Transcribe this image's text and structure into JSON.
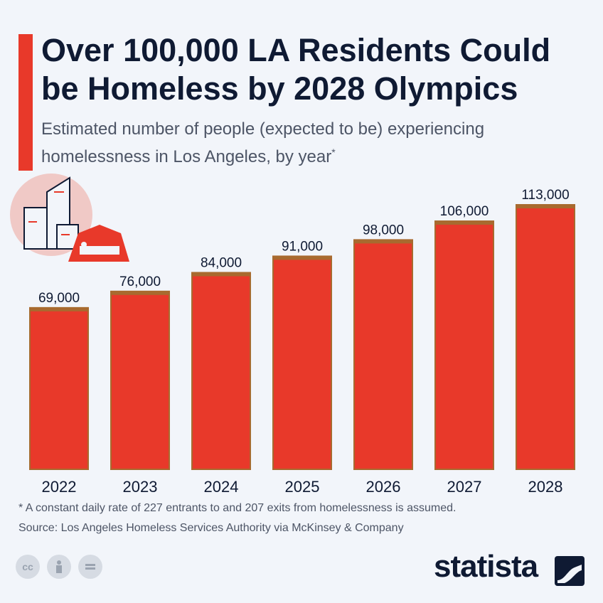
{
  "header": {
    "title": "Over 100,000 LA Residents Could be Homeless by 2028 Olympics",
    "subtitle": "Estimated number of people (expected to be) experiencing homelessness in Los Angeles, by year",
    "subtitle_marker": "*"
  },
  "footer": {
    "footnote": "* A constant daily rate of 227 entrants to and 207 exits from homelessness is assumed.",
    "source": "Source: Los Angeles Homeless Services Authority via McKinsey & Company",
    "brand": "statista",
    "license_icons": [
      "cc-icon",
      "attribution-icon",
      "no-derivatives-icon"
    ]
  },
  "colors": {
    "bar": "#e8392a",
    "bar_outline": "#a86a2f",
    "title": "#0f1a33",
    "background": "#f2f5fa"
  },
  "chart_data": {
    "type": "bar",
    "title": "Over 100,000 LA Residents Could be Homeless by 2028 Olympics",
    "categories": [
      "2022",
      "2023",
      "2024",
      "2025",
      "2026",
      "2027",
      "2028"
    ],
    "values": [
      69000,
      76000,
      84000,
      91000,
      98000,
      106000,
      113000
    ],
    "value_labels": [
      "69,000",
      "76,000",
      "84,000",
      "91,000",
      "98,000",
      "106,000",
      "113,000"
    ],
    "ylim": [
      0,
      113000
    ],
    "grid": false,
    "legend": "none"
  }
}
